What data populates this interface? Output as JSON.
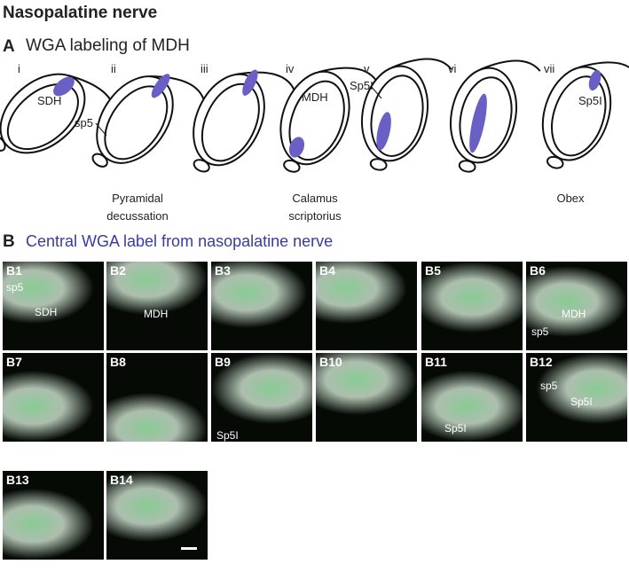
{
  "title": "Nasopalatine nerve",
  "panel_a": {
    "letter": "A",
    "heading": "WGA labeling of MDH",
    "sections": [
      {
        "numeral": "i",
        "labels": [
          "SDH"
        ]
      },
      {
        "numeral": "ii",
        "labels": [
          "sp5"
        ]
      },
      {
        "numeral": "iii",
        "labels": []
      },
      {
        "numeral": "iv",
        "labels": [
          "MDH"
        ]
      },
      {
        "numeral": "v",
        "labels": [
          "Sp5I"
        ]
      },
      {
        "numeral": "vi",
        "labels": []
      },
      {
        "numeral": "vii",
        "labels": [
          "Sp5I"
        ]
      }
    ],
    "landmarks": [
      {
        "lines": [
          "Pyramidal",
          "decussation"
        ]
      },
      {
        "lines": [
          "Calamus",
          "scriptorius"
        ]
      },
      {
        "lines": [
          "Obex"
        ]
      }
    ]
  },
  "panel_b": {
    "letter": "B",
    "heading": "Central WGA label from nasopalatine nerve",
    "images": [
      {
        "label": "B1",
        "annotations": [
          "sp5",
          "SDH"
        ]
      },
      {
        "label": "B2",
        "annotations": [
          "MDH"
        ]
      },
      {
        "label": "B3",
        "annotations": []
      },
      {
        "label": "B4",
        "annotations": []
      },
      {
        "label": "B5",
        "annotations": []
      },
      {
        "label": "B6",
        "annotations": [
          "MDH",
          "sp5"
        ]
      },
      {
        "label": "B7",
        "annotations": []
      },
      {
        "label": "B8",
        "annotations": []
      },
      {
        "label": "B9",
        "annotations": [
          "Sp5I"
        ]
      },
      {
        "label": "B10",
        "annotations": []
      },
      {
        "label": "B11",
        "annotations": [
          "Sp5I"
        ]
      },
      {
        "label": "B12",
        "annotations": [
          "sp5",
          "Sp5I"
        ]
      },
      {
        "label": "B13",
        "annotations": []
      },
      {
        "label": "B14",
        "annotations": []
      }
    ]
  }
}
